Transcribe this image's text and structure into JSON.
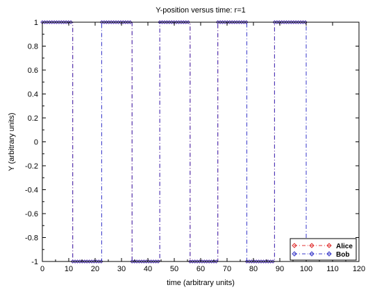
{
  "chart_data": {
    "type": "line",
    "title": "Y-position versus time: r=1",
    "xlabel": "time (arbitrary units)",
    "ylabel": "Y (arbitrary units)",
    "xlim": [
      0,
      120
    ],
    "ylim": [
      -1,
      1
    ],
    "xticks": [
      0,
      10,
      20,
      30,
      40,
      50,
      60,
      70,
      80,
      90,
      100,
      110,
      120
    ],
    "yticks": [
      -1,
      -0.8,
      -0.6,
      -0.4,
      -0.2,
      0,
      0.2,
      0.4,
      0.6,
      0.8,
      1
    ],
    "ytick_labels": [
      "-1",
      "-0.8",
      "-0.6",
      "-0.4",
      "-0.2",
      "0",
      "0.2",
      "0.4",
      "0.6",
      "0.8",
      "1"
    ],
    "grid": false,
    "legend_position": "bottom-right",
    "series": [
      {
        "name": "Alice",
        "color": "#e03030",
        "marker": "diamond",
        "linestyle": "dashdot",
        "x": [
          0,
          11.5,
          11.5,
          22.5,
          22.5,
          34,
          34,
          44.5,
          44.5,
          56,
          56,
          66.5,
          66.5,
          77.5,
          77.5,
          88,
          88,
          100
        ],
        "y": [
          1,
          1,
          -1,
          -1,
          1,
          1,
          -1,
          -1,
          1,
          1,
          -1,
          -1,
          1,
          1,
          -1,
          -1,
          1,
          1
        ]
      },
      {
        "name": "Bob",
        "color": "#3535c8",
        "marker": "diamond",
        "linestyle": "dashdot",
        "x": [
          0,
          11.5,
          11.5,
          22.5,
          22.5,
          34,
          34,
          44.5,
          44.5,
          56,
          56,
          66.5,
          66.5,
          77.5,
          77.5,
          88,
          88,
          100,
          100
        ],
        "y": [
          1,
          1,
          -1,
          -1,
          1,
          1,
          -1,
          -1,
          1,
          1,
          -1,
          -1,
          1,
          1,
          -1,
          -1,
          1,
          1,
          -1
        ]
      }
    ]
  }
}
